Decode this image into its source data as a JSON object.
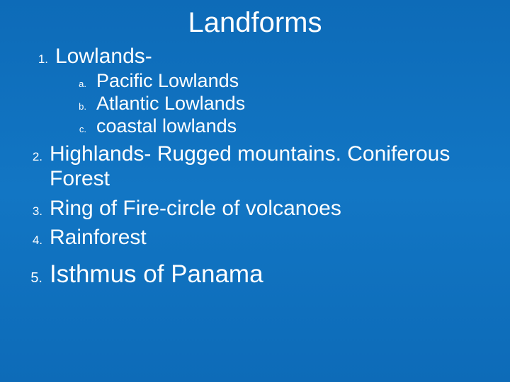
{
  "slide": {
    "title": "Landforms",
    "background_gradient": [
      "#0d6bb8",
      "#1276c4",
      "#0d6bb8"
    ],
    "text_color": "#ffffff",
    "items": [
      {
        "num": "1.",
        "label": "Lowlands-",
        "fontsize": 30,
        "sub": [
          {
            "num": "a.",
            "label": "Pacific Lowlands",
            "fontsize": 27
          },
          {
            "num": "b.",
            "label": "Atlantic Lowlands",
            "fontsize": 27
          },
          {
            "num": "c.",
            "label": "coastal lowlands",
            "fontsize": 27
          }
        ]
      },
      {
        "num": "2.",
        "label": "Highlands- Rugged mountains. Coniferous Forest",
        "fontsize": 30
      },
      {
        "num": "3.",
        "label": "Ring of Fire-circle of volcanoes",
        "fontsize": 30
      },
      {
        "num": "4.",
        "label": "Rainforest",
        "fontsize": 30
      },
      {
        "num": "5.",
        "label": "Isthmus of Panama",
        "fontsize": 35
      }
    ],
    "title_fontsize": 40,
    "number_fontsize": 17,
    "subnumber_fontsize": 13
  }
}
